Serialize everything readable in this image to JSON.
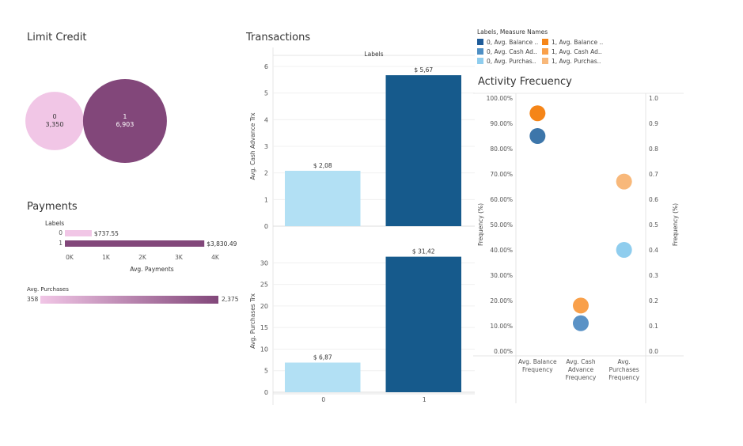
{
  "titles": {
    "limit_credit": "Limit Credit",
    "transactions": "Transactions",
    "payments": "Payments",
    "activity": "Activity Frecuency"
  },
  "legend": {
    "title": "Labels, Measure Names",
    "items": [
      {
        "label": "0, Avg. Balance ..",
        "color": "#1f5c99"
      },
      {
        "label": "1, Avg. Balance ..",
        "color": "#f58518"
      },
      {
        "label": "0, Avg. Cash Ad..",
        "color": "#4e8fc4"
      },
      {
        "label": "1, Avg. Cash Ad..",
        "color": "#f9a04a"
      },
      {
        "label": "0, Avg. Purchas..",
        "color": "#8fcdee"
      },
      {
        "label": "1, Avg. Purchas..",
        "color": "#f8b87a"
      }
    ]
  },
  "chart_data": [
    {
      "name": "limit_credit",
      "type": "bubble",
      "bubbles": [
        {
          "label": "0",
          "value": 3350,
          "value_text": "3,350",
          "color": "#f1c6e6"
        },
        {
          "label": "1",
          "value": 6903,
          "value_text": "6,903",
          "color": "#82477a"
        }
      ]
    },
    {
      "name": "transactions",
      "type": "bar",
      "header": "Labels",
      "categories": [
        "0",
        "1"
      ],
      "panels": [
        {
          "ylabel": "Avg. Cash Advance Trx",
          "ylim": [
            0,
            6
          ],
          "yticks": [
            0,
            1,
            2,
            3,
            4,
            5,
            6
          ],
          "values": [
            2.08,
            5.67
          ],
          "value_labels": [
            "$ 2,08",
            "$ 5,67"
          ],
          "colors": [
            "#b2e0f4",
            "#165a8c"
          ]
        },
        {
          "ylabel": "Avg. Purchases Trx",
          "ylim": [
            0,
            33
          ],
          "yticks": [
            0,
            5,
            10,
            15,
            20,
            25,
            30
          ],
          "values": [
            6.87,
            31.42
          ],
          "value_labels": [
            "$ 6,87",
            "$ 31,42"
          ],
          "colors": [
            "#b2e0f4",
            "#165a8c"
          ]
        }
      ]
    },
    {
      "name": "payments",
      "type": "bar",
      "orientation": "horizontal",
      "row_header": "Labels",
      "categories": [
        "0",
        "1"
      ],
      "values": [
        737.55,
        3830.49
      ],
      "value_labels": [
        "$737.55",
        "$3,830.49"
      ],
      "colors": [
        "#f1c6e6",
        "#82477a"
      ],
      "xlim": [
        0,
        4000
      ],
      "xticks": [
        "0K",
        "1K",
        "2K",
        "3K",
        "4K"
      ],
      "xlabel": "Avg. Payments"
    },
    {
      "name": "avg_purchases_legend",
      "type": "color_legend",
      "title": "Avg. Purchases",
      "min_label": "358",
      "max_label": "2,375",
      "color_start": "#f1c6e6",
      "color_end": "#82477a"
    },
    {
      "name": "activity_frequency",
      "type": "scatter",
      "categories": [
        "Avg. Balance\nFrequency",
        "Avg. Cash\nAdvance\nFrequency",
        "Avg.\nPurchases\nFrequency"
      ],
      "ylabel_left": "Frequency (%)",
      "ylabel_right": "Frequency (%)",
      "left_ticks": [
        "0.00%",
        "10.00%",
        "20.00%",
        "30.00%",
        "40.00%",
        "50.00%",
        "60.00%",
        "70.00%",
        "80.00%",
        "90.00%",
        "100.00%"
      ],
      "right_ticks": [
        "0.0",
        "0.1",
        "0.2",
        "0.3",
        "0.4",
        "0.5",
        "0.6",
        "0.7",
        "0.8",
        "0.9",
        "1.0"
      ],
      "ylim": [
        0,
        1
      ],
      "points": [
        {
          "series": "0, Avg. Balance",
          "category": 0,
          "y": 0.85,
          "color": "#3d76aa"
        },
        {
          "series": "1, Avg. Balance",
          "category": 0,
          "y": 0.94,
          "color": "#f58518"
        },
        {
          "series": "0, Avg. Cash Advance",
          "category": 1,
          "y": 0.11,
          "color": "#5a92c6"
        },
        {
          "series": "1, Avg. Cash Advance",
          "category": 1,
          "y": 0.18,
          "color": "#f9a04a"
        },
        {
          "series": "0, Avg. Purchases",
          "category": 2,
          "y": 0.4,
          "color": "#8fcdee"
        },
        {
          "series": "1, Avg. Purchases",
          "category": 2,
          "y": 0.67,
          "color": "#f8b87a"
        }
      ]
    }
  ]
}
